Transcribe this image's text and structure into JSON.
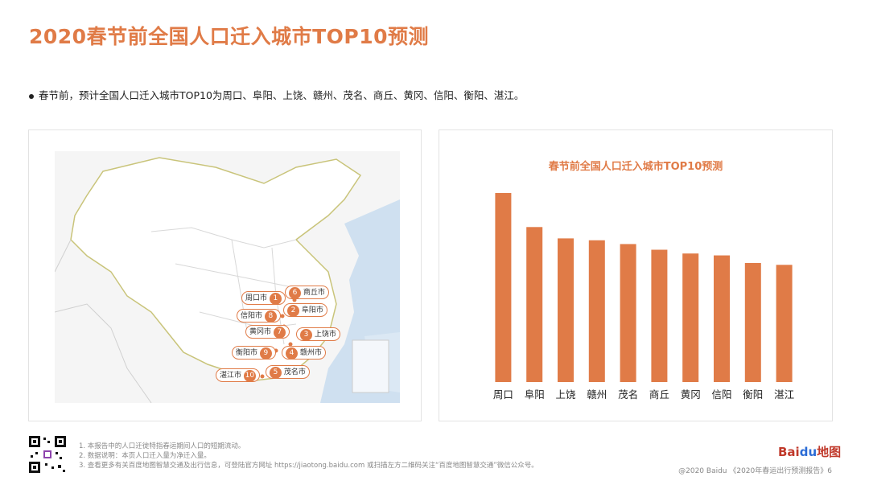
{
  "page": {
    "title": "2020春节前全国人口迁入城市TOP10预测",
    "summary": "春节前，预计全国人口迁入城市TOP10为周口、阜阳、上饶、赣州、茂名、商丘、黄冈、信阳、衡阳、湛江。"
  },
  "map": {
    "cities": [
      {
        "label": "周口市",
        "rank": "1"
      },
      {
        "label": "阜阳市",
        "rank": "2"
      },
      {
        "label": "上饶市",
        "rank": "3"
      },
      {
        "label": "赣州市",
        "rank": "4"
      },
      {
        "label": "茂名市",
        "rank": "5"
      },
      {
        "label": "商丘市",
        "rank": "6"
      },
      {
        "label": "黄冈市",
        "rank": "7"
      },
      {
        "label": "信阳市",
        "rank": "8"
      },
      {
        "label": "衡阳市",
        "rank": "9"
      },
      {
        "label": "湛江市",
        "rank": "10"
      }
    ]
  },
  "chart_data": {
    "type": "bar",
    "title": "春节前全国人口迁入城市TOP10预测",
    "categories": [
      "周口",
      "阜阳",
      "上饶",
      "赣州",
      "茂名",
      "商丘",
      "黄冈",
      "信阳",
      "衡阳",
      "湛江"
    ],
    "values": [
      100,
      82,
      76,
      75,
      73,
      70,
      68,
      67,
      63,
      62
    ],
    "ylim": [
      0,
      100
    ],
    "bar_color": "#e07b47",
    "grid": false,
    "legend": "none"
  },
  "footer": {
    "notes": [
      "1. 本报告中的人口迁徙特指春运期间人口的短期流动。",
      "2. 数据说明：本页人口迁入量为净迁入量。",
      "3. 查看更多有关百度地图智慧交通及出行信息，可登陆官方网址 https://jiaotong.baidu.com 或扫描左方二维码关注“百度地图智慧交通”微信公众号。"
    ],
    "copyright": "@2020 Baidu 《2020年春运出行预测报告》6",
    "logo_text_a": "Bai",
    "logo_text_b": "du",
    "logo_text_c": "地图"
  },
  "colors": {
    "accent": "#e07b47"
  }
}
